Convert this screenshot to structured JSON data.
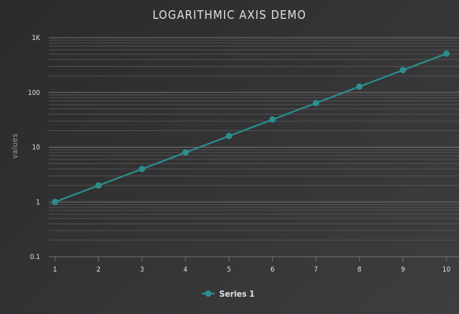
{
  "chart_data": {
    "type": "line",
    "title": "LOGARITHMIC AXIS DEMO",
    "xlabel": "",
    "ylabel": "values",
    "yscale": "log",
    "ylim": [
      0.1,
      1000
    ],
    "x": [
      1,
      2,
      3,
      4,
      5,
      6,
      7,
      8,
      9,
      10
    ],
    "x_tick_labels": [
      "1",
      "2",
      "3",
      "4",
      "5",
      "6",
      "7",
      "8",
      "9",
      "10"
    ],
    "y_ticks": [
      0.1,
      1,
      10,
      100,
      1000
    ],
    "y_tick_labels": [
      "0.1",
      "1",
      "10",
      "100",
      "1K"
    ],
    "series": [
      {
        "name": "Series 1",
        "values": [
          1,
          2,
          4,
          8,
          16,
          32,
          64,
          128,
          256,
          512
        ]
      }
    ],
    "grid": true,
    "minor_grid": true,
    "legend_position": "bottom-center",
    "colors": {
      "series": "#2b908f",
      "grid": "#707073",
      "minor_grid": "#505053",
      "text": "#e0e0e3"
    }
  }
}
